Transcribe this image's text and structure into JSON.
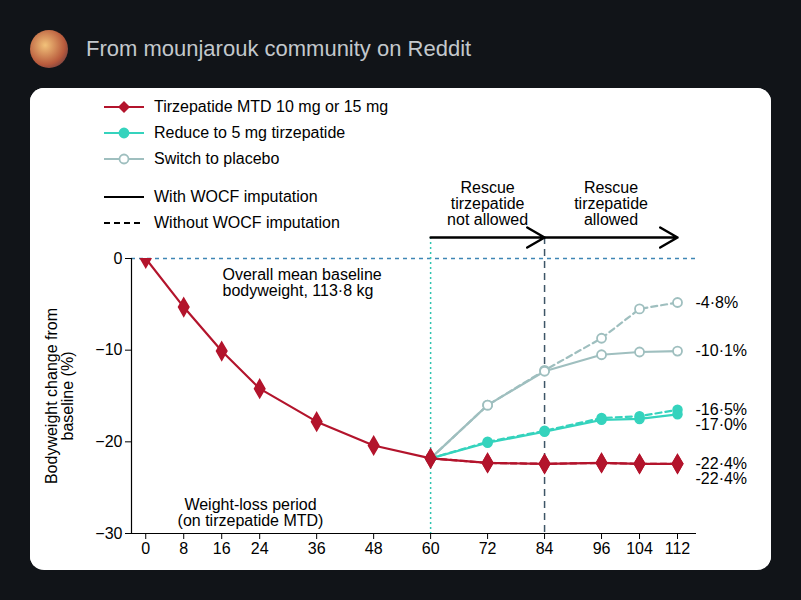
{
  "header": "From mounjarouk community on Reddit",
  "chart_data": {
    "type": "line",
    "y_label": "Bodyweight change from baseline (%)",
    "x": [
      0,
      8,
      16,
      24,
      36,
      48,
      60,
      72,
      84,
      96,
      104,
      112
    ],
    "xlim": [
      -3,
      116
    ],
    "xticks": [
      0,
      8,
      16,
      24,
      36,
      48,
      60,
      72,
      84,
      96,
      104,
      112
    ],
    "ylim": [
      -30,
      0
    ],
    "yticks": [
      -30,
      -20,
      -10,
      0
    ],
    "data_labels": true,
    "legend": "top-left",
    "series": [
      {
        "name": "Tirzepatide MTD 10 mg or 15 mg",
        "color": "#b3142c",
        "marker": "diamond",
        "line_style": "solid",
        "values": [
          0,
          -5.3,
          -10.1,
          -14.2,
          -17.8,
          -20.4,
          -21.8,
          -22.3,
          -22.4,
          -22.3,
          -22.4,
          -22.4
        ],
        "value_labels": [
          null,
          null,
          null,
          null,
          null,
          null,
          null,
          null,
          null,
          null,
          null,
          "-22·4%"
        ]
      },
      {
        "name": "Tirzepatide MTD 10 mg or 15 mg",
        "color": "#b3142c",
        "marker": "diamond",
        "line_style": "dashed",
        "values": [
          null,
          null,
          null,
          null,
          null,
          null,
          -21.8,
          -22.3,
          -22.4,
          -22.3,
          -22.4,
          -22.4
        ],
        "value_labels": [
          null,
          null,
          null,
          null,
          null,
          null,
          null,
          null,
          null,
          null,
          null,
          "-22·4%"
        ]
      },
      {
        "name": "Reduce to 5 mg tirzepatide",
        "color": "#35d3bd",
        "marker": "circle",
        "line_style": "solid",
        "values": [
          null,
          null,
          null,
          null,
          null,
          null,
          -21.8,
          -20.1,
          -18.9,
          -17.6,
          -17.5,
          -17.0
        ],
        "value_labels": [
          null,
          null,
          null,
          null,
          null,
          null,
          null,
          null,
          null,
          null,
          null,
          "-17·0%"
        ]
      },
      {
        "name": "Reduce to 5 mg tirzepatide",
        "color": "#35d3bd",
        "marker": "circle",
        "line_style": "dashed",
        "values": [
          null,
          null,
          null,
          null,
          null,
          null,
          -21.8,
          -20.0,
          -18.8,
          -17.4,
          -17.2,
          -16.5
        ],
        "value_labels": [
          null,
          null,
          null,
          null,
          null,
          null,
          null,
          null,
          null,
          null,
          null,
          "-16·5%"
        ]
      },
      {
        "name": "Switch to placebo",
        "color": "#9fbfbf",
        "marker": "circle-open",
        "line_style": "solid",
        "values": [
          null,
          null,
          null,
          null,
          null,
          null,
          -21.8,
          -16.0,
          -12.3,
          -10.5,
          -10.2,
          -10.1
        ],
        "value_labels": [
          null,
          null,
          null,
          null,
          null,
          null,
          null,
          null,
          null,
          null,
          null,
          "-10·1%"
        ]
      },
      {
        "name": "Switch to placebo",
        "color": "#9fbfbf",
        "marker": "circle-open",
        "line_style": "dashed",
        "values": [
          null,
          null,
          null,
          null,
          null,
          null,
          -21.8,
          -16.0,
          -12.2,
          -8.7,
          -5.5,
          -4.8
        ],
        "value_labels": [
          null,
          null,
          null,
          null,
          null,
          null,
          null,
          null,
          null,
          null,
          null,
          "-4·8%"
        ]
      }
    ],
    "line_style_legend": [
      {
        "line_style": "solid",
        "label": "With WOCF imputation"
      },
      {
        "line_style": "dashed",
        "label": "Without WOCF imputation"
      }
    ],
    "annotations": [
      "Overall mean baseline\nbodyweight, 113·8 kg",
      "Weight-loss period\n(on tirzepatide MTD)"
    ],
    "phases": [
      {
        "label": "Rescue\ntirzepatide\nnot allowed",
        "start": 60,
        "end": 84
      },
      {
        "label": "Rescue\ntirzepatide\nallowed",
        "start": 84,
        "end": 112
      }
    ]
  }
}
